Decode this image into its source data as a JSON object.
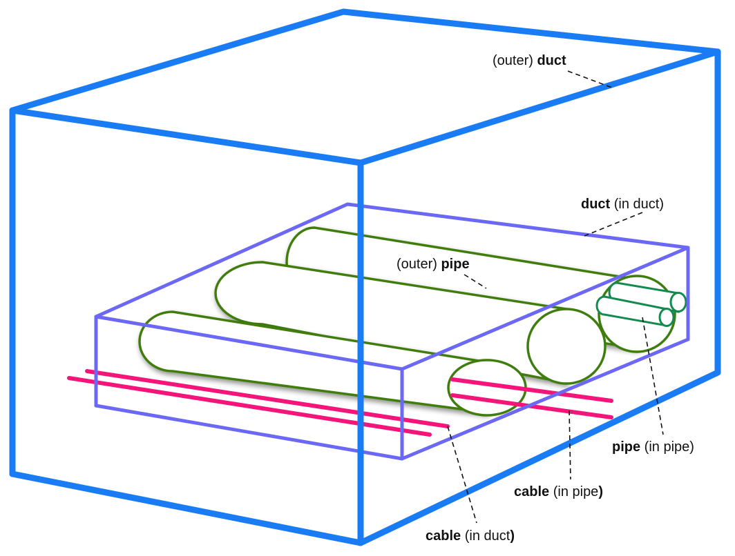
{
  "labels": {
    "outer_duct": {
      "prefix": "(outer) ",
      "bold": "duct",
      "suffix": ""
    },
    "duct_in_duct": {
      "prefix": "",
      "bold": "duct",
      "suffix": " (in duct)"
    },
    "outer_pipe": {
      "prefix": "(outer) ",
      "bold": "pipe",
      "suffix": ""
    },
    "pipe_in_pipe": {
      "prefix": "",
      "bold": "pipe",
      "suffix": " (in pipe)"
    },
    "cable_in_pipe": {
      "prefix": "",
      "bold": "cable",
      "suffix": " (in pipe",
      "suffix_bold": ")"
    },
    "cable_in_duct": {
      "prefix": "",
      "bold": "cable",
      "suffix": " (in duct",
      "suffix_bold": ")"
    }
  },
  "colors": {
    "outer_duct": "#1a7cf5",
    "inner_duct": "#6b68f5",
    "outer_pipe": "#3f7d0f",
    "inner_pipe": "#138a4f",
    "cable": "#f5157a",
    "leader": "#111111"
  }
}
